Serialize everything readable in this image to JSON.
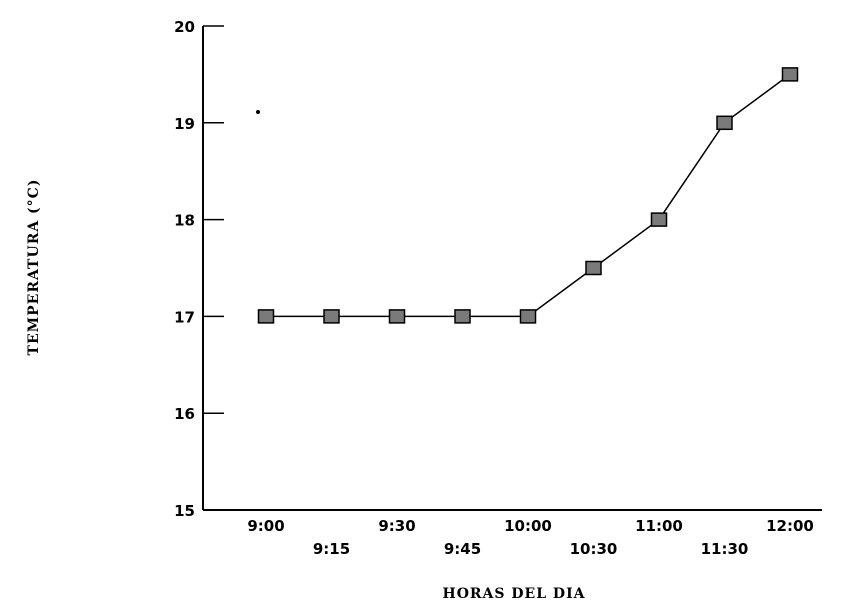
{
  "chart_data": {
    "type": "line",
    "title": "",
    "xlabel": "HORAS DEL DIA",
    "ylabel": "TEMPERATURA (°C)",
    "ylim": [
      15,
      20
    ],
    "yticks": [
      "15",
      "16",
      "17",
      "18",
      "19",
      "20"
    ],
    "categories": [
      "9:00",
      "9:15",
      "9:30",
      "9:45",
      "10:00",
      "10:30",
      "11:00",
      "11:30",
      "12:00"
    ],
    "series": [
      {
        "values": [
          17,
          17,
          17,
          17,
          17,
          17.5,
          18,
          19,
          19.5
        ]
      }
    ],
    "grid": false,
    "legend": "none",
    "colors": {
      "line": "#000000",
      "marker_fill": "#7a7a7a",
      "marker_stroke": "#000000"
    }
  }
}
